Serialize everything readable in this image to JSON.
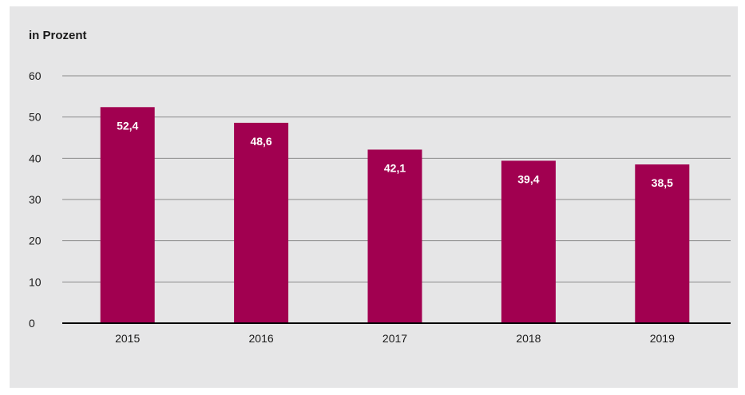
{
  "chart_data": {
    "type": "bar",
    "ylabel": "in Prozent",
    "categories": [
      "2015",
      "2016",
      "2017",
      "2018",
      "2019"
    ],
    "values": [
      52.4,
      48.6,
      42.1,
      39.4,
      38.5
    ],
    "value_labels": [
      "52,4",
      "48,6",
      "42,1",
      "39,4",
      "38,5"
    ],
    "ylim": [
      0,
      60
    ],
    "yticks": [
      0,
      10,
      20,
      30,
      40,
      50,
      60
    ],
    "ytick_labels": [
      "0",
      "10",
      "20",
      "30",
      "40",
      "50",
      "60"
    ],
    "grid": true,
    "colors": {
      "bar": "#a10050",
      "background": "#e6e6e7",
      "grid": "#8a8a8a",
      "axis": "#000000"
    }
  }
}
